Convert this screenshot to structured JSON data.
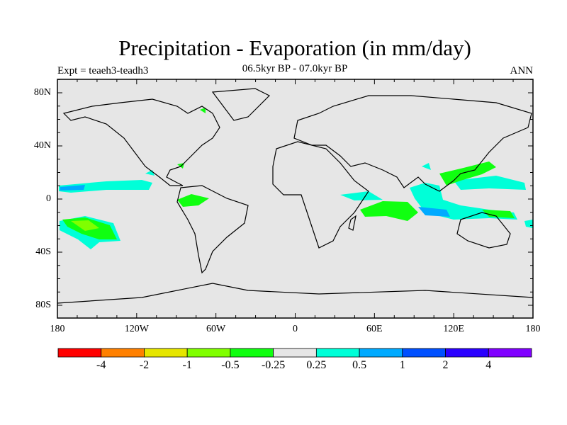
{
  "title": "Precipitation - Evaporation (in mm/day)",
  "subtitle": "06.5kyr BP - 07.0kyr BP",
  "left_label": "Expt = teaeh3-teadh3",
  "right_label": "ANN",
  "y_ticks": [
    {
      "label": "80N",
      "lat": 80
    },
    {
      "label": "40N",
      "lat": 40
    },
    {
      "label": "0",
      "lat": 0
    },
    {
      "label": "40S",
      "lat": -40
    },
    {
      "label": "80S",
      "lat": -80
    }
  ],
  "x_ticks": [
    {
      "label": "180",
      "lon": -180
    },
    {
      "label": "120W",
      "lon": -120
    },
    {
      "label": "60W",
      "lon": -60
    },
    {
      "label": "0",
      "lon": 0
    },
    {
      "label": "60E",
      "lon": 60
    },
    {
      "label": "120E",
      "lon": 120
    },
    {
      "label": "180",
      "lon": 180
    }
  ],
  "colorbar": {
    "colors": [
      "#ff0000",
      "#ff8000",
      "#e6e600",
      "#80ff00",
      "#10ff10",
      "#e6e6e6",
      "#00ffd8",
      "#00aaff",
      "#0050ff",
      "#2a00ff",
      "#8000ff"
    ],
    "labels": [
      "-4",
      "-2",
      "-1",
      "-0.5",
      "-0.25",
      "0.25",
      "0.5",
      "1",
      "2",
      "4"
    ]
  },
  "colors": {
    "land_ocean_bg": "#e6e6e6",
    "coast": "#000000"
  }
}
